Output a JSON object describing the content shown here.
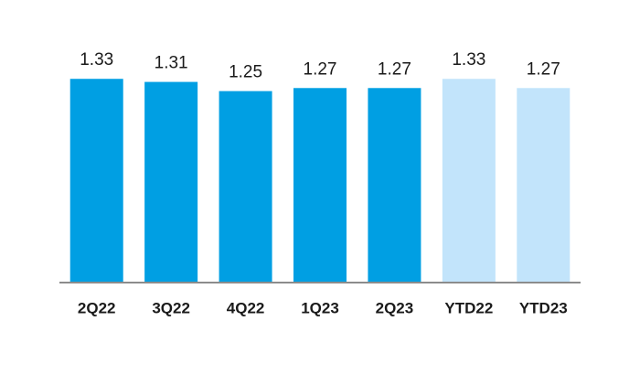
{
  "chart_data": {
    "type": "bar",
    "categories": [
      "2Q22",
      "3Q22",
      "4Q22",
      "1Q23",
      "2Q23",
      "YTD22",
      "YTD23"
    ],
    "values": [
      1.33,
      1.31,
      1.25,
      1.27,
      1.27,
      1.33,
      1.27
    ],
    "colors": [
      "#009fe3",
      "#009fe3",
      "#009fe3",
      "#009fe3",
      "#009fe3",
      "#c2e4fb",
      "#c2e4fb"
    ],
    "ylim": [
      0,
      1.4
    ]
  }
}
